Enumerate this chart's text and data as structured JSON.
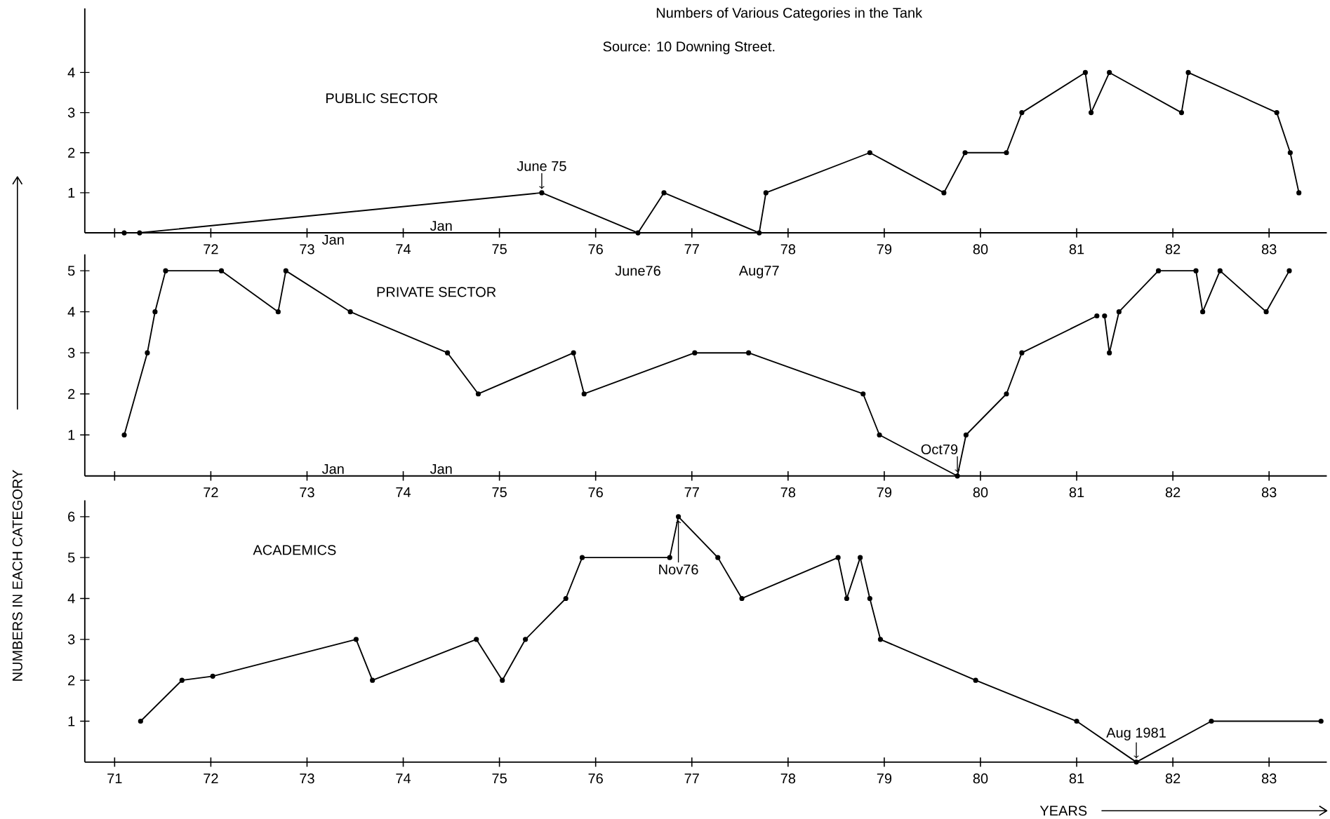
{
  "chart_data": [
    {
      "type": "line",
      "title": "Numbers of Various Categories in the Tank",
      "subtitle": "Source: 10 Downing Street.",
      "marker": "circle",
      "line_style": "solid",
      "xlim": [
        70.69,
        83.6
      ],
      "ylim": [
        0,
        5.6
      ],
      "yticks": [
        1,
        2,
        3,
        4
      ],
      "xticks": [
        {
          "value": 71,
          "label": null
        },
        72,
        73,
        74,
        75,
        76,
        77,
        78,
        79,
        80,
        81,
        82,
        83
      ],
      "annotations": [
        "Jan",
        "Jan",
        {
          "text": "June 75",
          "x": 75.44,
          "y": 1
        },
        {
          "text": "June76",
          "x": 76.44,
          "y": 0
        },
        {
          "text": "Aug77",
          "x": 77.7,
          "y": 0
        }
      ],
      "series": [
        {
          "name": "PUBLIC SECTOR",
          "color": "#000000",
          "x": [
            71.1,
            71.26,
            75.44,
            76.44,
            76.71,
            77.7,
            77.77,
            78.85,
            79.62,
            79.84,
            80.27,
            80.43,
            81.09,
            81.15,
            81.34,
            82.09,
            82.16,
            83.08,
            83.22,
            83.31
          ],
          "values": [
            0,
            0,
            1,
            0,
            1,
            0,
            1,
            2,
            1,
            2,
            2,
            3,
            4,
            3,
            4,
            3,
            4,
            3,
            2,
            1
          ]
        }
      ]
    },
    {
      "type": "line",
      "ylabel": "NUMBERS IN EACH CATEGORY",
      "marker": "circle",
      "line_style": "solid",
      "xlim": [
        70.69,
        83.6
      ],
      "ylim": [
        0,
        5.4
      ],
      "yticks": [
        1,
        2,
        3,
        4,
        5
      ],
      "xticks": [
        {
          "value": 71,
          "label": null
        },
        72,
        73,
        74,
        75,
        76,
        77,
        78,
        79,
        80,
        81,
        82,
        83
      ],
      "annotations": [
        "Jan",
        "Jan",
        {
          "text": "Oct79",
          "x": 79.76,
          "y": 0
        }
      ],
      "series": [
        {
          "name": "PRIVATE SECTOR",
          "color": "#000000",
          "x": [
            71.1,
            71.34,
            71.42,
            71.53,
            72.11,
            72.7,
            72.78,
            73.45,
            74.46,
            74.78,
            75.77,
            75.88,
            77.03,
            77.59,
            78.78,
            78.95,
            79.76,
            79.85,
            80.27,
            80.43,
            81.21,
            81.25,
            81.29,
            81.34,
            81.44,
            81.85,
            82.24,
            82.31,
            82.49,
            82.97,
            83.21
          ],
          "values": [
            1,
            3,
            4,
            5,
            5,
            4,
            5,
            4,
            3,
            2,
            3,
            2,
            3,
            3,
            2,
            1,
            0,
            1,
            2,
            3,
            3.9,
            null,
            3.9,
            3,
            4,
            5,
            5,
            4,
            5,
            4,
            5
          ]
        }
      ]
    },
    {
      "type": "line",
      "xlabel": "YEARS",
      "marker": "circle",
      "line_style": "solid",
      "xlim": [
        70.69,
        83.6
      ],
      "ylim": [
        0,
        6.4
      ],
      "yticks": [
        1,
        2,
        3,
        4,
        5,
        6
      ],
      "xticks": [
        71,
        72,
        73,
        74,
        75,
        76,
        77,
        78,
        79,
        80,
        81,
        82,
        83
      ],
      "annotations": [
        {
          "text": "Nov76",
          "x": 76.86,
          "y": 6
        },
        {
          "text": "Aug 1981",
          "x": 81.62,
          "y": 0
        }
      ],
      "series": [
        {
          "name": "ACADEMICS",
          "color": "#000000",
          "x": [
            71.27,
            71.7,
            72.02,
            73.51,
            73.68,
            74.76,
            75.03,
            75.27,
            75.69,
            75.86,
            76.77,
            76.86,
            77.27,
            77.52,
            78.52,
            78.61,
            78.75,
            78.85,
            78.96,
            79.95,
            81.0,
            81.62,
            82.4,
            83.54
          ],
          "values": [
            1,
            2,
            2.1,
            3,
            2,
            3,
            2,
            3,
            4,
            5,
            5,
            6,
            5,
            4,
            5,
            4,
            5,
            4,
            3,
            2,
            1,
            0,
            1,
            1
          ]
        }
      ]
    }
  ]
}
